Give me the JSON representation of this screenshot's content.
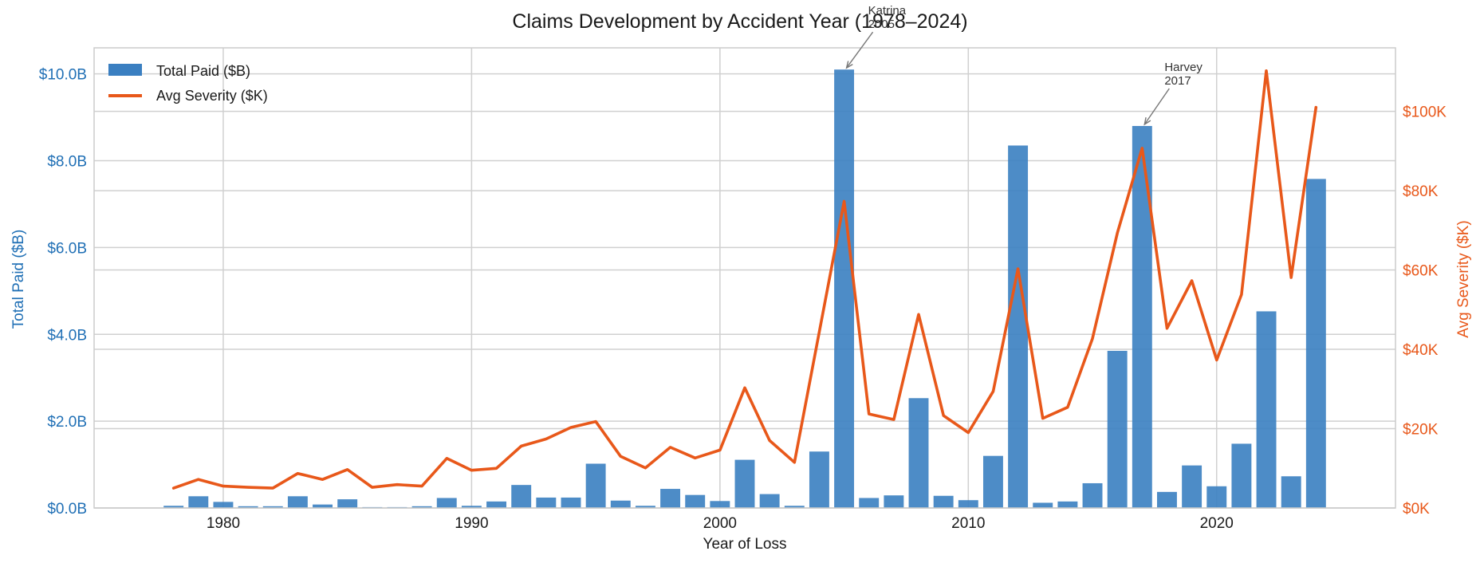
{
  "chart_data": {
    "type": "bar+line",
    "title": "Claims Development by Accident Year (1978–2024)",
    "xlabel": "Year of Loss",
    "ylabel_left": "Total Paid ($B)",
    "ylabel_right": "Avg Severity ($K)",
    "xlim": [
      1974.8,
      2027.2
    ],
    "ylim_left": [
      0,
      10.6
    ],
    "ylim_right": [
      0,
      116
    ],
    "x_ticks": [
      1980,
      1990,
      2000,
      2010,
      2020
    ],
    "y_left_ticks": [
      {
        "v": 0,
        "label": "$0.0B"
      },
      {
        "v": 2,
        "label": "$2.0B"
      },
      {
        "v": 4,
        "label": "$4.0B"
      },
      {
        "v": 6,
        "label": "$6.0B"
      },
      {
        "v": 8,
        "label": "$8.0B"
      },
      {
        "v": 10,
        "label": "$10.0B"
      }
    ],
    "y_right_ticks": [
      {
        "v": 0,
        "label": "$0K"
      },
      {
        "v": 20,
        "label": "$20K"
      },
      {
        "v": 40,
        "label": "$40K"
      },
      {
        "v": 60,
        "label": "$60K"
      },
      {
        "v": 80,
        "label": "$80K"
      },
      {
        "v": 100,
        "label": "$100K"
      }
    ],
    "grid": true,
    "legend_position": "top-left",
    "colors": {
      "bars": "#3a7fc1",
      "line": "#e8581a",
      "left_axis": "#1f6fb5",
      "right_axis": "#e8581a",
      "grid": "#d0d0d0"
    },
    "years": [
      1978,
      1979,
      1980,
      1981,
      1982,
      1983,
      1984,
      1985,
      1986,
      1987,
      1988,
      1989,
      1990,
      1991,
      1992,
      1993,
      1994,
      1995,
      1996,
      1997,
      1998,
      1999,
      2000,
      2001,
      2002,
      2003,
      2004,
      2005,
      2006,
      2007,
      2008,
      2009,
      2010,
      2011,
      2012,
      2013,
      2014,
      2015,
      2016,
      2017,
      2018,
      2019,
      2020,
      2021,
      2022,
      2023,
      2024
    ],
    "series": [
      {
        "name": "Total Paid ($B)",
        "type": "bar",
        "axis": "left",
        "values": [
          0.05,
          0.27,
          0.14,
          0.04,
          0.04,
          0.27,
          0.08,
          0.2,
          0.02,
          0.02,
          0.04,
          0.23,
          0.05,
          0.15,
          0.53,
          0.24,
          0.24,
          1.02,
          0.17,
          0.05,
          0.44,
          0.3,
          0.16,
          1.11,
          0.32,
          0.05,
          1.3,
          10.1,
          0.23,
          0.29,
          2.53,
          0.28,
          0.18,
          1.2,
          8.35,
          0.12,
          0.15,
          0.57,
          3.62,
          8.8,
          0.37,
          0.98,
          0.5,
          1.48,
          4.53,
          0.73,
          7.58
        ]
      },
      {
        "name": "Avg Severity ($K)",
        "type": "line",
        "axis": "right",
        "values": [
          5.0,
          7.2,
          5.5,
          5.2,
          5.0,
          8.7,
          7.2,
          9.7,
          5.2,
          5.9,
          5.5,
          12.5,
          9.5,
          10.0,
          15.6,
          17.4,
          20.3,
          21.8,
          13.0,
          10.1,
          15.3,
          12.6,
          14.6,
          30.3,
          17.0,
          11.5,
          null,
          77.3,
          23.7,
          22.3,
          48.8,
          23.3,
          19.0,
          29.4,
          60.3,
          22.6,
          25.4,
          42.7,
          69.3,
          90.7,
          45.3,
          57.3,
          37.3,
          53.8,
          110.2,
          58.1,
          101.0
        ]
      }
    ],
    "annotations": [
      {
        "line1": "Katrina",
        "line2": "2005",
        "year": 2005,
        "value": 10.1
      },
      {
        "line1": "Harvey",
        "line2": "2017",
        "year": 2017,
        "value": 8.8
      }
    ]
  }
}
